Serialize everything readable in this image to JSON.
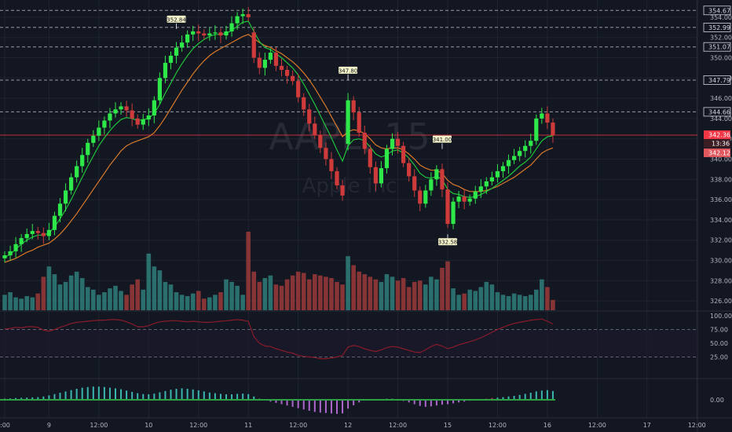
{
  "app": {
    "watermark_symbol": "AAPL, 15",
    "watermark_name": "Apple Inc"
  },
  "colors": {
    "bg": "#131722",
    "grid": "#1f2430",
    "up": "#26a65b",
    "down": "#cf3a3a",
    "up_bright": "#2ee84a",
    "vol_up": "#2f7f7a",
    "vol_down": "#9b3a3a",
    "ma_fast": "#1ec43a",
    "ma_slow": "#d9792a",
    "rsi": "#8a1b2a",
    "last_price": "#f23645",
    "label_bg": "#f5f3c8"
  },
  "x_axis": {
    "labels": [
      {
        "i": 0,
        "text": ":00"
      },
      {
        "i": 8,
        "text": "9"
      },
      {
        "i": 17,
        "text": "12:00"
      },
      {
        "i": 26,
        "text": "10"
      },
      {
        "i": 35,
        "text": "12:00"
      },
      {
        "i": 44,
        "text": "11"
      },
      {
        "i": 53,
        "text": "12:00"
      },
      {
        "i": 62,
        "text": "12"
      },
      {
        "i": 71,
        "text": "12:00"
      },
      {
        "i": 80,
        "text": "15"
      },
      {
        "i": 89,
        "text": "12:00"
      },
      {
        "i": 98,
        "text": "16"
      },
      {
        "i": 107,
        "text": "12:00"
      },
      {
        "i": 116,
        "text": "17"
      },
      {
        "i": 125,
        "text": "12:00"
      }
    ]
  },
  "price_axis": {
    "ticks": [
      "326.00",
      "328.00",
      "330.00",
      "332.00",
      "334.00",
      "336.00",
      "338.00",
      "340.00",
      "342.00",
      "344.00",
      "346.00",
      "348.00",
      "350.00",
      "352.00",
      "354.00"
    ],
    "levels": [
      "354.67",
      "352.99",
      "351.07",
      "347.79",
      "344.66"
    ],
    "last_price": "342.36",
    "countdown": "13:36",
    "prev_price": "342.12"
  },
  "rsi_axis": {
    "ticks": [
      "100.00",
      "75.00",
      "50.00",
      "25.00"
    ]
  },
  "macd_axis": {
    "ticks": [
      "0.00"
    ]
  },
  "annotations": [
    {
      "i": 31,
      "text": "352.84",
      "price": 352.84
    },
    {
      "i": 62,
      "text": "347.80",
      "price": 347.8
    },
    {
      "i": 79,
      "text": "341.00",
      "price": 341.0
    },
    {
      "i": 80,
      "text": "332.58",
      "price": 332.58
    }
  ],
  "chart_data": {
    "type": "candlestick",
    "symbol": "AAPL",
    "interval": "15",
    "ylim": [
      325,
      355
    ],
    "close": [
      330.5,
      330.9,
      331.6,
      332.2,
      332.6,
      332.9,
      332.7,
      332.4,
      333.0,
      334.4,
      335.6,
      336.9,
      338.2,
      339.3,
      340.4,
      341.6,
      342.3,
      343.1,
      343.8,
      344.5,
      344.9,
      345.2,
      344.8,
      344.0,
      343.4,
      343.9,
      344.3,
      345.8,
      348.0,
      349.5,
      350.2,
      351.0,
      351.5,
      352.3,
      352.6,
      352.4,
      352.2,
      352.4,
      352.5,
      352.2,
      352.6,
      353.4,
      354.1,
      354.3,
      354.0,
      350.0,
      349.0,
      349.8,
      350.5,
      349.2,
      348.8,
      348.2,
      347.7,
      346.1,
      344.9,
      343.5,
      342.4,
      341.1,
      340.0,
      338.8,
      337.4,
      336.4,
      345.8,
      344.6,
      342.6,
      341.0,
      339.2,
      337.6,
      339.1,
      341.0,
      342.0,
      341.3,
      339.6,
      338.3,
      336.9,
      335.6,
      336.9,
      338.0,
      339.0,
      337.0,
      333.6,
      335.8,
      336.3,
      335.8,
      336.1,
      336.8,
      337.3,
      337.8,
      338.2,
      338.8,
      339.3,
      339.9,
      340.3,
      340.8,
      341.3,
      341.8,
      344.0,
      344.5,
      343.6,
      342.36
    ],
    "open": [
      330.2,
      330.5,
      330.9,
      331.6,
      332.2,
      332.6,
      332.9,
      332.7,
      332.4,
      333.0,
      334.4,
      335.6,
      336.9,
      338.2,
      339.3,
      340.4,
      341.6,
      342.3,
      343.1,
      343.8,
      344.5,
      344.9,
      345.2,
      344.8,
      344.0,
      343.4,
      343.9,
      344.3,
      345.8,
      348.0,
      349.5,
      350.2,
      351.0,
      351.5,
      352.3,
      352.6,
      352.4,
      352.2,
      352.4,
      352.5,
      352.2,
      352.6,
      353.4,
      354.1,
      354.3,
      352.5,
      350.0,
      349.0,
      349.8,
      350.5,
      349.2,
      348.8,
      348.2,
      347.7,
      346.1,
      344.9,
      343.5,
      342.4,
      341.1,
      340.0,
      338.8,
      337.4,
      341.5,
      345.8,
      344.6,
      342.6,
      341.0,
      339.2,
      337.6,
      339.1,
      341.0,
      342.0,
      341.3,
      339.6,
      338.3,
      336.9,
      335.6,
      336.9,
      338.0,
      339.0,
      337.0,
      333.6,
      335.8,
      336.3,
      335.8,
      336.1,
      336.8,
      337.3,
      337.8,
      338.2,
      338.8,
      339.3,
      339.9,
      340.3,
      340.8,
      341.3,
      341.8,
      344.0,
      344.5,
      343.6
    ],
    "ma_fast": [
      330.3,
      330.6,
      331.1,
      331.6,
      332.0,
      332.3,
      332.5,
      332.5,
      332.7,
      333.3,
      334.1,
      335.0,
      336.0,
      337.1,
      338.2,
      339.3,
      340.3,
      341.3,
      342.1,
      342.8,
      343.4,
      343.9,
      344.1,
      344.0,
      343.8,
      343.9,
      344.0,
      344.5,
      345.4,
      346.5,
      347.5,
      348.5,
      349.4,
      350.2,
      350.9,
      351.4,
      351.8,
      352.1,
      352.3,
      352.3,
      352.4,
      352.7,
      353.1,
      353.5,
      353.6,
      352.6,
      351.6,
      351.0,
      350.8,
      350.4,
      350.0,
      349.5,
      349.0,
      348.3,
      347.4,
      346.4,
      345.4,
      344.3,
      343.2,
      342.1,
      340.9,
      339.8,
      341.3,
      341.9,
      342.0,
      341.8,
      341.2,
      340.5,
      340.2,
      340.4,
      340.8,
      340.9,
      340.6,
      340.1,
      339.4,
      338.6,
      338.2,
      338.1,
      338.3,
      338.0,
      337.0,
      336.6,
      336.5,
      336.3,
      336.2,
      336.3,
      336.5,
      336.8,
      337.1,
      337.5,
      337.9,
      338.3,
      338.8,
      339.3,
      339.7,
      340.2,
      341.0,
      341.8,
      342.2,
      342.3
    ],
    "ma_slow": [
      329.8,
      330.0,
      330.2,
      330.5,
      330.8,
      331.0,
      331.3,
      331.5,
      331.7,
      332.1,
      332.6,
      333.2,
      333.9,
      334.6,
      335.4,
      336.2,
      337.0,
      337.8,
      338.6,
      339.4,
      340.1,
      340.8,
      341.3,
      341.6,
      341.8,
      342.0,
      342.2,
      342.6,
      343.3,
      344.1,
      345.0,
      345.9,
      346.8,
      347.6,
      348.4,
      349.1,
      349.7,
      350.2,
      350.6,
      350.9,
      351.2,
      351.5,
      351.8,
      352.1,
      352.3,
      351.9,
      351.5,
      351.2,
      351.0,
      350.7,
      350.4,
      350.0,
      349.6,
      349.1,
      348.5,
      347.8,
      347.0,
      346.1,
      345.2,
      344.2,
      343.2,
      342.2,
      342.7,
      342.9,
      342.8,
      342.5,
      342.0,
      341.4,
      341.1,
      341.0,
      341.1,
      341.1,
      340.9,
      340.5,
      340.0,
      339.4,
      339.1,
      338.9,
      338.9,
      338.6,
      337.9,
      337.5,
      337.3,
      337.0,
      336.8,
      336.8,
      336.8,
      336.9,
      337.1,
      337.3,
      337.6,
      337.9,
      338.2,
      338.6,
      339.0,
      339.4,
      340.0,
      340.6,
      340.9,
      341.1
    ],
    "volume": [
      12,
      14,
      10,
      9,
      11,
      10,
      13,
      26,
      34,
      28,
      20,
      22,
      27,
      30,
      25,
      18,
      16,
      12,
      14,
      17,
      19,
      15,
      12,
      20,
      24,
      16,
      44,
      34,
      31,
      22,
      20,
      14,
      12,
      11,
      13,
      15,
      9,
      10,
      12,
      14,
      24,
      22,
      19,
      12,
      61,
      30,
      22,
      25,
      27,
      20,
      19,
      24,
      27,
      30,
      29,
      24,
      28,
      27,
      26,
      25,
      22,
      20,
      42,
      35,
      30,
      28,
      26,
      24,
      22,
      28,
      26,
      23,
      25,
      18,
      22,
      23,
      20,
      26,
      24,
      33,
      38,
      17,
      12,
      13,
      16,
      15,
      18,
      22,
      20,
      14,
      12,
      11,
      13,
      12,
      11,
      12,
      16,
      24,
      18,
      8
    ],
    "rsi": [
      76,
      77,
      79,
      78,
      80,
      80,
      79,
      74,
      72,
      75,
      79,
      82,
      86,
      88,
      89,
      90,
      91,
      92,
      92,
      93,
      93,
      92,
      89,
      85,
      80,
      80,
      82,
      86,
      89,
      90,
      91,
      91,
      90,
      89,
      90,
      89,
      88,
      88,
      89,
      90,
      91,
      92,
      93,
      92,
      90,
      62,
      50,
      45,
      44,
      40,
      37,
      34,
      32,
      28,
      26,
      25,
      24,
      22,
      22,
      23,
      25,
      28,
      43,
      46,
      44,
      40,
      37,
      35,
      38,
      42,
      44,
      43,
      40,
      37,
      34,
      33,
      38,
      44,
      48,
      45,
      40,
      43,
      47,
      50,
      53,
      56,
      60,
      65,
      70,
      75,
      79,
      83,
      86,
      88,
      90,
      92,
      93,
      94,
      90,
      85
    ],
    "macd": [
      0.05,
      0.06,
      0.08,
      0.09,
      0.1,
      0.11,
      0.12,
      0.15,
      0.2,
      0.26,
      0.32,
      0.38,
      0.44,
      0.5,
      0.55,
      0.58,
      0.6,
      0.6,
      0.58,
      0.55,
      0.52,
      0.48,
      0.42,
      0.36,
      0.3,
      0.26,
      0.25,
      0.28,
      0.34,
      0.4,
      0.46,
      0.5,
      0.52,
      0.5,
      0.47,
      0.43,
      0.38,
      0.33,
      0.3,
      0.27,
      0.25,
      0.25,
      0.27,
      0.28,
      0.26,
      0.15,
      0.05,
      -0.02,
      -0.08,
      -0.14,
      -0.2,
      -0.26,
      -0.32,
      -0.38,
      -0.44,
      -0.5,
      -0.55,
      -0.58,
      -0.6,
      -0.62,
      -0.64,
      -0.62,
      -0.4,
      -0.25,
      -0.12,
      -0.04,
      -0.02,
      -0.02,
      0.02,
      0.05,
      0.05,
      0.02,
      -0.05,
      -0.12,
      -0.2,
      -0.28,
      -0.32,
      -0.3,
      -0.26,
      -0.22,
      -0.2,
      -0.16,
      -0.12,
      -0.08,
      -0.04,
      -0.02,
      0.02,
      0.05,
      0.08,
      0.1,
      0.12,
      0.15,
      0.18,
      0.22,
      0.27,
      0.32,
      0.38,
      0.42,
      0.44,
      0.4
    ]
  }
}
